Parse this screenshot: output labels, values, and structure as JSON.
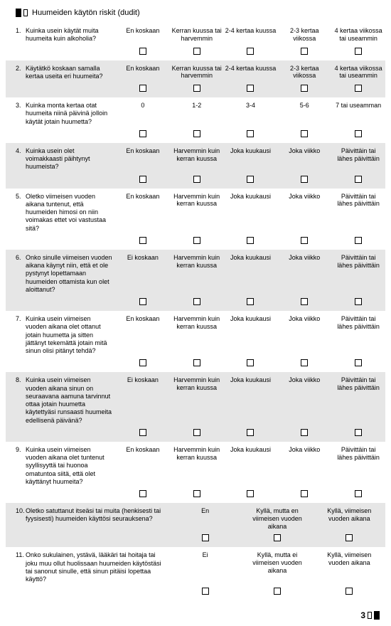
{
  "title": "Huumeiden käytön riskit (dudit)",
  "questions": [
    {
      "n": "1.",
      "text": "Kuinka usein käytät muita huumeita kuin alkoholia?",
      "shaded": false,
      "cols": 5,
      "opts": [
        "En koskaan",
        "Kerran kuussa tai harvemmin",
        "2-4 kertaa kuussa",
        "2-3 kertaa viikossa",
        "4 kertaa viikossa tai useammin"
      ]
    },
    {
      "n": "2.",
      "text": "Käytätkö koskaan samalla kertaa useita eri huumeita?",
      "shaded": true,
      "cols": 5,
      "opts": [
        "En koskaan",
        "Kerran kuussa tai harvemmin",
        "2-4 kertaa kuussa",
        "2-3 kertaa viikossa",
        "4 kertaa viikossa tai useammin"
      ]
    },
    {
      "n": "3.",
      "text": "Kuinka monta kertaa otat huumeita niinä päivinä jolloin käytät jotain huumetta?",
      "shaded": false,
      "cols": 5,
      "opts": [
        "0",
        "1-2",
        "3-4",
        "5-6",
        "7 tai useamman"
      ]
    },
    {
      "n": "4.",
      "text": "Kuinka usein olet voimakkaasti päihtynyt huumeista?",
      "shaded": true,
      "cols": 5,
      "opts": [
        "En koskaan",
        "Harvemmin kuin kerran kuussa",
        "Joka kuukausi",
        "Joka viikko",
        "Päivittäin tai lähes päivittäin"
      ]
    },
    {
      "n": "5.",
      "text": "Oletko viimeisen vuoden aikana tuntenut, että huumeiden himosi on niin voimakas ettet voi vastustaa sitä?",
      "shaded": false,
      "cols": 5,
      "opts": [
        "En koskaan",
        "Harvemmin kuin kerran kuussa",
        "Joka kuukausi",
        "Joka viikko",
        "Päivittäin tai lähes päivittäin"
      ]
    },
    {
      "n": "6.",
      "text": "Onko sinulle viimeisen vuoden aikana käynyt niin, että et ole pystynyt lopettamaan huumeiden ottamista kun olet aloittanut?",
      "shaded": true,
      "cols": 5,
      "opts": [
        "Ei koskaan",
        "Harvemmin kuin kerran kuussa",
        "Joka kuukausi",
        "Joka viikko",
        "Päivittäin tai lähes päivittäin"
      ]
    },
    {
      "n": "7.",
      "text": "Kuinka usein viimeisen vuoden aikana olet ottanut jotain huumetta ja sitten jättänyt tekemättä jotain mitä sinun olisi pitänyt tehdä?",
      "shaded": false,
      "cols": 5,
      "opts": [
        "En koskaan",
        "Harvemmin kuin kerran kuussa",
        "Joka kuukausi",
        "Joka viikko",
        "Päivittäin tai lähes päivittäin"
      ]
    },
    {
      "n": "8.",
      "text": "Kuinka usein viimeisen vuoden aikana sinun on seuraavana aamuna tarvinnut ottaa jotain huumetta käytettyäsi runsaasti huumeita edellisenä päivänä?",
      "shaded": true,
      "cols": 5,
      "opts": [
        "Ei koskaan",
        "Harvemmin kuin kerran kuussa",
        "Joka kuukausi",
        "Joka viikko",
        "Päivittäin tai lähes päivittäin"
      ]
    },
    {
      "n": "9.",
      "text": "Kuinka usein viimeisen vuoden aikana olet tuntenut syyllisyyttä tai huonoa omatuntoa siitä, että olet käyttänyt huumeita?",
      "shaded": false,
      "cols": 5,
      "opts": [
        "En koskaan",
        "Harvemmin kuin kerran kuussa",
        "Joka kuukausi",
        "Joka viikko",
        "Päivittäin tai lähes päivittäin"
      ]
    },
    {
      "n": "10.",
      "text": "Oletko satuttanut itseäsi tai muita (henkisesti tai fyysisesti) huumeiden käyttösi seurauksena?",
      "shaded": true,
      "cols": 3,
      "wide": true,
      "opts": [
        "En",
        "Kyllä, mutta en viimeisen vuoden aikana",
        "Kyllä, viimeisen vuoden aikana"
      ]
    },
    {
      "n": "11.",
      "text": "Onko sukulainen, ystävä, lääkäri tai hoitaja tai joku muu ollut huolissaan huumeiden käytöstäsi tai sanonut sinulle, että sinun pitäisi lopettaa käyttö?",
      "shaded": false,
      "cols": 3,
      "wide": true,
      "opts": [
        "Ei",
        "Kyllä, mutta ei viimeisen vuoden aikana",
        "Kyllä, viimeisen vuoden aikana"
      ]
    }
  ],
  "pagenum": "3"
}
